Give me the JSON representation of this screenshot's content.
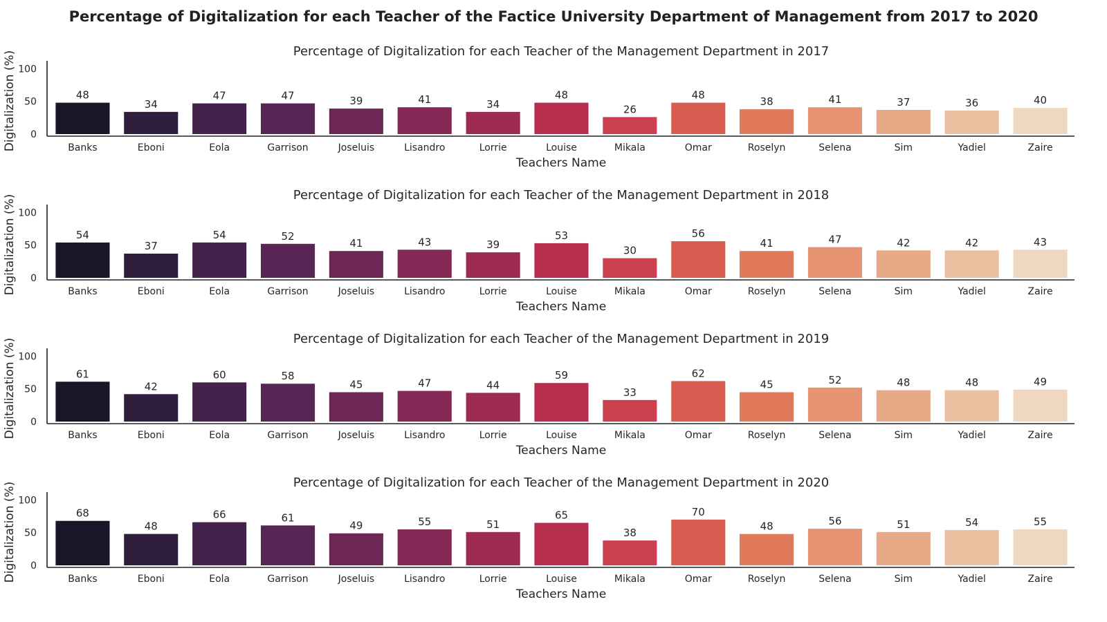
{
  "suptitle": "Percentage of Digitalization for each Teacher of the Factice University Department of Management from 2017 to 2020",
  "palette": [
    "#1a1629",
    "#2e1e3b",
    "#43234b",
    "#582555",
    "#6d2755",
    "#842855",
    "#9e2a54",
    "#b82e4f",
    "#cc3f4c",
    "#d85c50",
    "#e17a5a",
    "#e59370",
    "#e8a987",
    "#ebc0a1",
    "#f0d7c2"
  ],
  "chart_data": [
    {
      "type": "bar",
      "title": "Percentage of Digitalization for each Teacher of the Management Department in 2017",
      "xlabel": "Teachers Name",
      "ylabel": "Digitalization (%)",
      "ylim": [
        0,
        110
      ],
      "yticks": [
        "0",
        "50",
        "100"
      ],
      "categories": [
        "Banks",
        "Eboni",
        "Eola",
        "Garrison",
        "Joseluis",
        "Lisandro",
        "Lorrie",
        "Louise",
        "Mikala",
        "Omar",
        "Roselyn",
        "Selena",
        "Sim",
        "Yadiel",
        "Zaire"
      ],
      "values": [
        48,
        34,
        47,
        47,
        39,
        41,
        34,
        48,
        26,
        48,
        38,
        41,
        37,
        36,
        40
      ]
    },
    {
      "type": "bar",
      "title": "Percentage of Digitalization for each Teacher of the Management Department in 2018",
      "xlabel": "Teachers Name",
      "ylabel": "Digitalization (%)",
      "ylim": [
        0,
        110
      ],
      "yticks": [
        "0",
        "50",
        "100"
      ],
      "categories": [
        "Banks",
        "Eboni",
        "Eola",
        "Garrison",
        "Joseluis",
        "Lisandro",
        "Lorrie",
        "Louise",
        "Mikala",
        "Omar",
        "Roselyn",
        "Selena",
        "Sim",
        "Yadiel",
        "Zaire"
      ],
      "values": [
        54,
        37,
        54,
        52,
        41,
        43,
        39,
        53,
        30,
        56,
        41,
        47,
        42,
        42,
        43
      ]
    },
    {
      "type": "bar",
      "title": "Percentage of Digitalization for each Teacher of the Management Department in 2019",
      "xlabel": "Teachers Name",
      "ylabel": "Digitalization (%)",
      "ylim": [
        0,
        110
      ],
      "yticks": [
        "0",
        "50",
        "100"
      ],
      "categories": [
        "Banks",
        "Eboni",
        "Eola",
        "Garrison",
        "Joseluis",
        "Lisandro",
        "Lorrie",
        "Louise",
        "Mikala",
        "Omar",
        "Roselyn",
        "Selena",
        "Sim",
        "Yadiel",
        "Zaire"
      ],
      "values": [
        61,
        42,
        60,
        58,
        45,
        47,
        44,
        59,
        33,
        62,
        45,
        52,
        48,
        48,
        49
      ]
    },
    {
      "type": "bar",
      "title": "Percentage of Digitalization for each Teacher of the Management Department in 2020",
      "xlabel": "Teachers Name",
      "ylabel": "Digitalization (%)",
      "ylim": [
        0,
        110
      ],
      "yticks": [
        "0",
        "50",
        "100"
      ],
      "categories": [
        "Banks",
        "Eboni",
        "Eola",
        "Garrison",
        "Joseluis",
        "Lisandro",
        "Lorrie",
        "Louise",
        "Mikala",
        "Omar",
        "Roselyn",
        "Selena",
        "Sim",
        "Yadiel",
        "Zaire"
      ],
      "values": [
        68,
        48,
        66,
        61,
        49,
        55,
        51,
        65,
        38,
        70,
        48,
        56,
        51,
        54,
        55
      ]
    }
  ]
}
